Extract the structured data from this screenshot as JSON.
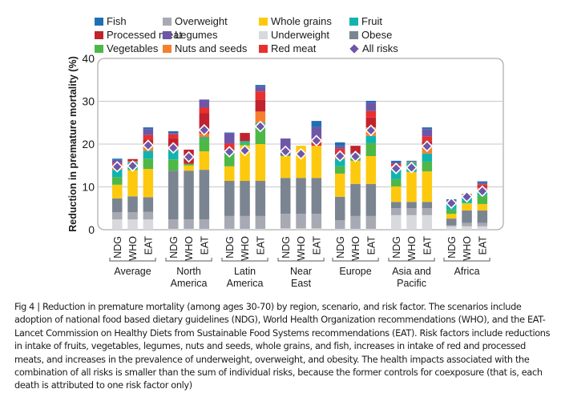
{
  "chart_data": {
    "type": "bar",
    "stacked": true,
    "title": "",
    "xlabel": "",
    "ylabel": "Reduction in premature mortality (%)",
    "ylim": [
      0,
      40
    ],
    "yticks": [
      0,
      10,
      20,
      30,
      40
    ],
    "grid": true,
    "legend_position": "top",
    "legend": [
      {
        "name": "Fish",
        "color": "#1f6fb4",
        "marker": "square"
      },
      {
        "name": "Processed meat",
        "color": "#c0232e",
        "marker": "square"
      },
      {
        "name": "Vegetables",
        "color": "#4db848",
        "marker": "square"
      },
      {
        "name": "Overweight",
        "color": "#a7a9b3",
        "marker": "square"
      },
      {
        "name": "Legumes",
        "color": "#6e56a7",
        "marker": "square"
      },
      {
        "name": "Nuts and seeds",
        "color": "#f47f2c",
        "marker": "square"
      },
      {
        "name": "Whole grains",
        "color": "#fdc90f",
        "marker": "square"
      },
      {
        "name": "Underweight",
        "color": "#d8d9dd",
        "marker": "square"
      },
      {
        "name": "Red meat",
        "color": "#e8302f",
        "marker": "square"
      },
      {
        "name": "Fruit",
        "color": "#12b3ae",
        "marker": "square"
      },
      {
        "name": "Obese",
        "color": "#7b8591",
        "marker": "square"
      },
      {
        "name": "All risks",
        "color": "#6e56a7",
        "marker": "diamond"
      }
    ],
    "stack_order": [
      "Underweight",
      "Overweight",
      "Obese",
      "Whole grains",
      "Vegetables",
      "Fruit",
      "Nuts and seeds",
      "Processed meat",
      "Red meat",
      "Legumes",
      "Fish"
    ],
    "colors": {
      "Underweight": "#d8d9dd",
      "Overweight": "#a7a9b3",
      "Obese": "#7b8591",
      "Whole grains": "#fdc90f",
      "Vegetables": "#4db848",
      "Fruit": "#12b3ae",
      "Nuts and seeds": "#f47f2c",
      "Processed meat": "#c0232e",
      "Red meat": "#e8302f",
      "Legumes": "#6e56a7",
      "Fish": "#1f6fb4",
      "All risks": "#6e56a7"
    },
    "scenarios": [
      "NDG",
      "WHO",
      "EAT"
    ],
    "groups": [
      {
        "name": "Average",
        "bars": [
          {
            "scenario": "NDG",
            "segments": {
              "Underweight": 2.4,
              "Overweight": 1.7,
              "Obese": 3.2,
              "Whole grains": 3.2,
              "Vegetables": 1.8,
              "Fruit": 1.7,
              "Nuts and seeds": 0.3,
              "Processed meat": 0.4,
              "Red meat": 0.8,
              "Legumes": 0.8,
              "Fish": 0.3
            },
            "all_risks": 14.7
          },
          {
            "scenario": "WHO",
            "segments": {
              "Underweight": 2.4,
              "Overweight": 1.7,
              "Obese": 3.7,
              "Whole grains": 6.1,
              "Vegetables": 0.2,
              "Fruit": 1.7,
              "Nuts and seeds": 0.2,
              "Processed meat": 0.5,
              "Red meat": 0.0,
              "Legumes": 0.0,
              "Fish": 0.0
            },
            "all_risks": 14.9
          },
          {
            "scenario": "EAT",
            "segments": {
              "Underweight": 2.4,
              "Overweight": 1.8,
              "Obese": 3.4,
              "Whole grains": 6.6,
              "Vegetables": 2.4,
              "Fruit": 1.8,
              "Nuts and seeds": 1.4,
              "Processed meat": 1.3,
              "Red meat": 1.0,
              "Legumes": 1.4,
              "Fish": 0.4
            },
            "all_risks": 19.7
          }
        ]
      },
      {
        "name": "North America",
        "bars": [
          {
            "scenario": "NDG",
            "segments": {
              "Underweight": 0.2,
              "Overweight": 2.2,
              "Obese": 11.4,
              "Whole grains": 0.0,
              "Vegetables": 2.6,
              "Fruit": 2.1,
              "Nuts and seeds": 0.3,
              "Processed meat": 2.5,
              "Red meat": 1.0,
              "Legumes": 0.3,
              "Fish": 0.4
            },
            "all_risks": 19.1
          },
          {
            "scenario": "WHO",
            "segments": {
              "Underweight": 0.2,
              "Overweight": 2.2,
              "Obese": 11.4,
              "Whole grains": 1.2,
              "Vegetables": 0.4,
              "Fruit": 0.0,
              "Nuts and seeds": 0.0,
              "Processed meat": 3.3,
              "Red meat": 0.0,
              "Legumes": 0.0,
              "Fish": 0.0
            },
            "all_risks": 17.0
          },
          {
            "scenario": "EAT",
            "segments": {
              "Underweight": 0.2,
              "Overweight": 2.2,
              "Obese": 11.6,
              "Whole grains": 4.3,
              "Vegetables": 3.0,
              "Fruit": 0.3,
              "Nuts and seeds": 0.9,
              "Processed meat": 4.7,
              "Red meat": 1.3,
              "Legumes": 1.9,
              "Fish": 0.0
            },
            "all_risks": 23.3
          }
        ]
      },
      {
        "name": "Latin America",
        "bars": [
          {
            "scenario": "NDG",
            "segments": {
              "Underweight": 0.2,
              "Overweight": 3.0,
              "Obese": 8.2,
              "Whole grains": 3.4,
              "Vegetables": 2.8,
              "Fruit": 0.6,
              "Nuts and seeds": 0.4,
              "Processed meat": 0.4,
              "Red meat": 1.1,
              "Legumes": 2.4,
              "Fish": 0.2
            },
            "all_risks": 18.2
          },
          {
            "scenario": "WHO",
            "segments": {
              "Underweight": 0.2,
              "Overweight": 3.0,
              "Obese": 8.2,
              "Whole grains": 8.3,
              "Vegetables": 0.6,
              "Fruit": 0.4,
              "Nuts and seeds": 0.0,
              "Processed meat": 1.9,
              "Red meat": 0.0,
              "Legumes": 0.0,
              "Fish": 0.0
            },
            "all_risks": 18.5
          },
          {
            "scenario": "EAT",
            "segments": {
              "Underweight": 0.2,
              "Overweight": 3.0,
              "Obese": 8.2,
              "Whole grains": 8.6,
              "Vegetables": 4.6,
              "Fruit": 0.4,
              "Nuts and seeds": 2.6,
              "Processed meat": 2.8,
              "Red meat": 1.9,
              "Legumes": 1.1,
              "Fish": 0.4
            },
            "all_risks": 24.1
          }
        ]
      },
      {
        "name": "Near East",
        "bars": [
          {
            "scenario": "NDG",
            "segments": {
              "Underweight": 0.3,
              "Overweight": 3.4,
              "Obese": 8.4,
              "Whole grains": 5.1,
              "Vegetables": 0.2,
              "Fruit": 0.0,
              "Nuts and seeds": 0.0,
              "Processed meat": 0.0,
              "Red meat": 0.0,
              "Legumes": 3.9,
              "Fish": 0.0
            },
            "all_risks": 18.3
          },
          {
            "scenario": "WHO",
            "segments": {
              "Underweight": 0.3,
              "Overweight": 3.4,
              "Obese": 8.4,
              "Whole grains": 7.5,
              "Vegetables": 0.0,
              "Fruit": 0.0,
              "Nuts and seeds": 0.0,
              "Processed meat": 0.0,
              "Red meat": 0.0,
              "Legumes": 0.0,
              "Fish": 0.0
            },
            "all_risks": 17.7
          },
          {
            "scenario": "EAT",
            "segments": {
              "Underweight": 0.3,
              "Overweight": 3.4,
              "Obese": 8.4,
              "Whole grains": 7.5,
              "Vegetables": 0.0,
              "Fruit": 0.0,
              "Nuts and seeds": 0.0,
              "Processed meat": 0.0,
              "Red meat": 1.7,
              "Legumes": 2.7,
              "Fish": 1.4
            },
            "all_risks": 20.8
          }
        ]
      },
      {
        "name": "Europe",
        "bars": [
          {
            "scenario": "NDG",
            "segments": {
              "Underweight": 0.2,
              "Overweight": 2.0,
              "Obese": 5.5,
              "Whole grains": 5.4,
              "Vegetables": 1.7,
              "Fruit": 1.7,
              "Nuts and seeds": 1.1,
              "Processed meat": 0.5,
              "Red meat": 0.8,
              "Legumes": 0.7,
              "Fish": 0.8
            },
            "all_risks": 17.2
          },
          {
            "scenario": "WHO",
            "segments": {
              "Underweight": 0.2,
              "Overweight": 3.0,
              "Obese": 7.5,
              "Whole grains": 5.4,
              "Vegetables": 0.7,
              "Fruit": 1.0,
              "Nuts and seeds": 0.0,
              "Processed meat": 1.8,
              "Red meat": 0.0,
              "Legumes": 0.0,
              "Fish": 0.0
            },
            "all_risks": 17.1
          },
          {
            "scenario": "EAT",
            "segments": {
              "Underweight": 0.2,
              "Overweight": 3.0,
              "Obese": 7.5,
              "Whole grains": 6.5,
              "Vegetables": 3.0,
              "Fruit": 1.7,
              "Nuts and seeds": 2.0,
              "Processed meat": 2.3,
              "Red meat": 1.5,
              "Legumes": 2.0,
              "Fish": 0.4
            },
            "all_risks": 23.2
          }
        ]
      },
      {
        "name": "Asia and Pacific",
        "bars": [
          {
            "scenario": "NDG",
            "segments": {
              "Underweight": 3.4,
              "Overweight": 1.6,
              "Obese": 1.5,
              "Whole grains": 3.6,
              "Vegetables": 1.7,
              "Fruit": 2.3,
              "Nuts and seeds": 0.8,
              "Processed meat": 0.0,
              "Red meat": 0.5,
              "Legumes": 0.3,
              "Fish": 0.4
            },
            "all_risks": 14.3
          },
          {
            "scenario": "WHO",
            "segments": {
              "Underweight": 3.4,
              "Overweight": 1.6,
              "Obese": 1.5,
              "Whole grains": 7.0,
              "Vegetables": 0.0,
              "Fruit": 2.2,
              "Nuts and seeds": 0.2,
              "Processed meat": 0.0,
              "Red meat": 0.0,
              "Legumes": 0.0,
              "Fish": 0.2
            },
            "all_risks": 14.5
          },
          {
            "scenario": "EAT",
            "segments": {
              "Underweight": 3.4,
              "Overweight": 1.6,
              "Obese": 1.5,
              "Whole grains": 7.1,
              "Vegetables": 2.3,
              "Fruit": 1.9,
              "Nuts and seeds": 2.1,
              "Processed meat": 0.8,
              "Red meat": 1.1,
              "Legumes": 1.7,
              "Fish": 0.4
            },
            "all_risks": 19.5
          }
        ]
      },
      {
        "name": "Africa",
        "bars": [
          {
            "scenario": "NDG",
            "segments": {
              "Underweight": 0.8,
              "Overweight": 0.2,
              "Obese": 1.6,
              "Whole grains": 1.1,
              "Vegetables": 1.0,
              "Fruit": 1.2,
              "Nuts and seeds": 0.3,
              "Processed meat": 0.2,
              "Red meat": 0.2,
              "Legumes": 0.3,
              "Fish": 0.2
            },
            "all_risks": 6.2
          },
          {
            "scenario": "WHO",
            "segments": {
              "Underweight": 0.8,
              "Overweight": 0.8,
              "Obese": 2.9,
              "Whole grains": 1.7,
              "Vegetables": 0.0,
              "Fruit": 2.0,
              "Nuts and seeds": 0.2,
              "Processed meat": 0.0,
              "Red meat": 0.0,
              "Legumes": 0.0,
              "Fish": 0.0
            },
            "all_risks": 7.7
          },
          {
            "scenario": "EAT",
            "segments": {
              "Underweight": 0.8,
              "Overweight": 0.8,
              "Obese": 2.9,
              "Whole grains": 1.5,
              "Vegetables": 2.0,
              "Fruit": 1.3,
              "Nuts and seeds": 0.5,
              "Processed meat": 0.4,
              "Red meat": 0.4,
              "Legumes": 0.4,
              "Fish": 0.3
            },
            "all_risks": 9.0
          }
        ]
      }
    ]
  },
  "caption": "Fig 4 | Reduction in premature mortality (among ages 30-70) by region, scenario, and risk factor. The scenarios include adoption of national food based dietary guidelines (NDG), World Health Organization recommendations (WHO), and the EAT-Lancet Commission on Healthy Diets from Sustainable Food Systems recommendations (EAT). Risk factors include reductions in intake of fruits, vegetables, legumes, nuts and seeds, whole grains, and fish, increases in intake of red and processed meats, and increases in the prevalence of underweight, overweight, and obesity. The health impacts associated with the combination of all risks is smaller than the sum of individual risks, because the former controls for coexposure (that is, each death is attributed to one risk factor only)"
}
